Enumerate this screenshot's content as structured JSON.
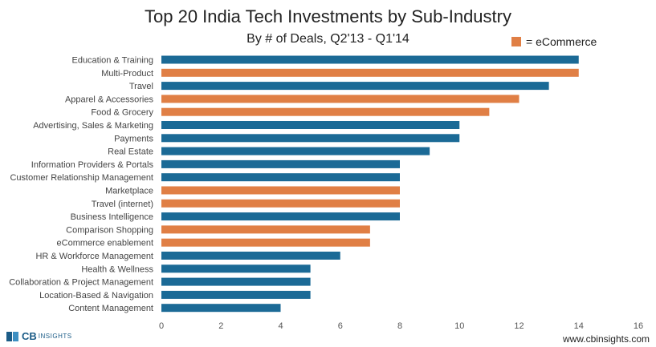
{
  "chart_data": {
    "type": "bar",
    "orientation": "horizontal",
    "title": "Top 20 India Tech Investments by Sub-Industry",
    "subtitle": "By # of Deals, Q2'13 - Q1'14",
    "categories": [
      "Education & Training",
      "Multi-Product",
      "Travel",
      "Apparel & Accessories",
      "Food & Grocery",
      "Advertising, Sales & Marketing",
      "Payments",
      "Real Estate",
      "Information Providers & Portals",
      "Customer Relationship Management",
      "Marketplace",
      "Travel (internet)",
      "Business Intelligence",
      "Comparison Shopping",
      "eCommerce enablement",
      "HR & Workforce Management",
      "Health & Wellness",
      "Collaboration & Project Management",
      "Location-Based & Navigation",
      "Content Management"
    ],
    "values": [
      14,
      14,
      13,
      12,
      11,
      10,
      10,
      9,
      8,
      8,
      8,
      8,
      8,
      7,
      7,
      6,
      5,
      5,
      5,
      4
    ],
    "ecommerce": [
      false,
      true,
      false,
      true,
      true,
      false,
      false,
      false,
      false,
      false,
      true,
      true,
      false,
      true,
      true,
      false,
      false,
      false,
      false,
      false
    ],
    "xlim": [
      0,
      16
    ],
    "xticks": [
      0,
      2,
      4,
      6,
      8,
      10,
      12,
      14,
      16
    ],
    "legend": {
      "label": "= eCommerce",
      "position": "top-right"
    },
    "colors": {
      "default": "#1b6a96",
      "ecommerce": "#e07f45"
    },
    "grid": false
  },
  "branding": {
    "logo_cb": "CB",
    "logo_insights": "INSIGHTS",
    "website": "www.cbinsights.com",
    "logo_colors": [
      "#1b5c87",
      "#3d8fc2"
    ]
  }
}
